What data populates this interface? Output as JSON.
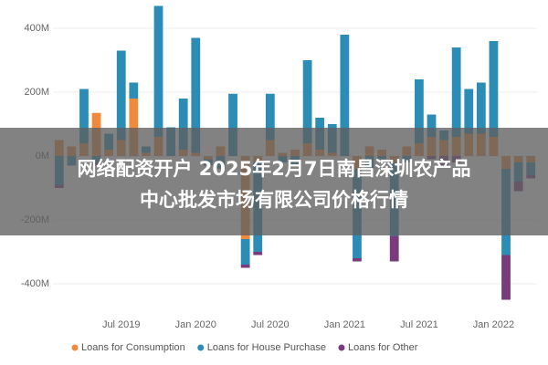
{
  "chart_data": {
    "type": "bar",
    "stacked": true,
    "categories": [
      null,
      null,
      null,
      null,
      null,
      "Jul 2019",
      null,
      null,
      null,
      null,
      null,
      "Jan 2020",
      null,
      null,
      null,
      null,
      null,
      "Jul 2020",
      null,
      null,
      null,
      null,
      null,
      "Jan 2021",
      null,
      null,
      null,
      null,
      null,
      "Jul 2021",
      null,
      null,
      null,
      null,
      null,
      "Jan 2022",
      null,
      null,
      null
    ],
    "series": [
      {
        "name": "Loans for Consumption",
        "color": "#ee8a3c",
        "values": [
          50,
          30,
          40,
          135,
          20,
          50,
          180,
          10,
          60,
          0,
          20,
          10,
          -10,
          30,
          0,
          -260,
          -20,
          50,
          10,
          20,
          40,
          20,
          10,
          0,
          -40,
          30,
          20,
          -20,
          30,
          40,
          60,
          50,
          60,
          70,
          70,
          60,
          -40,
          -20,
          -20
        ]
      },
      {
        "name": "Loans for House Purchase",
        "color": "#2b8db5",
        "values": [
          -90,
          -30,
          170,
          -20,
          50,
          280,
          50,
          20,
          410,
          90,
          160,
          360,
          -20,
          -40,
          195,
          -80,
          -280,
          145,
          -20,
          -30,
          260,
          100,
          90,
          380,
          -280,
          -40,
          -10,
          -230,
          -20,
          200,
          70,
          30,
          280,
          140,
          160,
          300,
          -270,
          -60,
          -40
        ]
      },
      {
        "name": "Loans for Other",
        "color": "#7a3b7c",
        "values": [
          -10,
          0,
          0,
          -10,
          0,
          0,
          0,
          0,
          0,
          0,
          0,
          0,
          0,
          0,
          0,
          -10,
          -10,
          0,
          0,
          0,
          0,
          0,
          0,
          0,
          -10,
          0,
          0,
          -80,
          0,
          0,
          -10,
          -30,
          -20,
          0,
          0,
          0,
          -140,
          -30,
          -10
        ]
      }
    ],
    "ylim": [
      -480,
      480
    ],
    "yticks": [
      {
        "value": -400,
        "label": "-400M"
      },
      {
        "value": -200,
        "label": "-200M"
      },
      {
        "value": 0,
        "label": "0M"
      },
      {
        "value": 200,
        "label": "200M"
      },
      {
        "value": 400,
        "label": "400M"
      }
    ],
    "grid": true,
    "legend": "bottom"
  },
  "overlay_text": [
    "网络配资开户 2025年2月7日南昌深圳农产品",
    "中心批发市场有限公司价格行情"
  ]
}
